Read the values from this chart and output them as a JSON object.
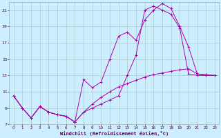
{
  "xlabel": "Windchill (Refroidissement éolien,°C)",
  "background_color": "#cceeff",
  "grid_color": "#aacccc",
  "line_color": "#aa00aa",
  "xlim": [
    -0.5,
    23.5
  ],
  "ylim": [
    7,
    22
  ],
  "xtick_labels": [
    "0",
    "1",
    "2",
    "3",
    "4",
    "5",
    "6",
    "7",
    "8",
    "9",
    "10",
    "11",
    "12",
    "13",
    "14",
    "15",
    "16",
    "17",
    "18",
    "19",
    "20",
    "21",
    "22",
    "23"
  ],
  "yticks": [
    7,
    9,
    11,
    13,
    15,
    17,
    19,
    21
  ],
  "line1_x": [
    0,
    1,
    2,
    3,
    4,
    5,
    6,
    7,
    8,
    9,
    10,
    11,
    12,
    13,
    14,
    15,
    16,
    17,
    18,
    19,
    20,
    21,
    22,
    23
  ],
  "line1_y": [
    10.5,
    9.0,
    7.8,
    9.2,
    8.5,
    8.2,
    8.0,
    7.3,
    8.5,
    9.0,
    9.5,
    10.0,
    10.5,
    13.0,
    15.5,
    21.0,
    21.5,
    21.0,
    20.5,
    18.8,
    13.2,
    13.0,
    13.0,
    13.0
  ],
  "line2_x": [
    0,
    1,
    2,
    3,
    4,
    5,
    6,
    7,
    8,
    9,
    10,
    11,
    12,
    13,
    14,
    15,
    16,
    17,
    18,
    19,
    20,
    21,
    22,
    23
  ],
  "line2_y": [
    10.5,
    9.0,
    7.8,
    9.2,
    8.5,
    8.2,
    8.0,
    7.3,
    12.5,
    11.5,
    12.2,
    15.0,
    17.8,
    18.3,
    17.3,
    19.8,
    21.0,
    21.8,
    21.2,
    19.0,
    16.5,
    13.2,
    13.0,
    13.0
  ],
  "line3_x": [
    0,
    1,
    2,
    3,
    4,
    5,
    6,
    7,
    8,
    9,
    10,
    11,
    12,
    13,
    14,
    15,
    16,
    17,
    18,
    19,
    20,
    21,
    22,
    23
  ],
  "line3_y": [
    10.5,
    9.0,
    7.8,
    9.2,
    8.5,
    8.2,
    8.0,
    7.3,
    8.5,
    9.5,
    10.3,
    11.0,
    11.6,
    12.0,
    12.4,
    12.8,
    13.1,
    13.3,
    13.5,
    13.7,
    13.8,
    13.2,
    13.1,
    13.0
  ]
}
